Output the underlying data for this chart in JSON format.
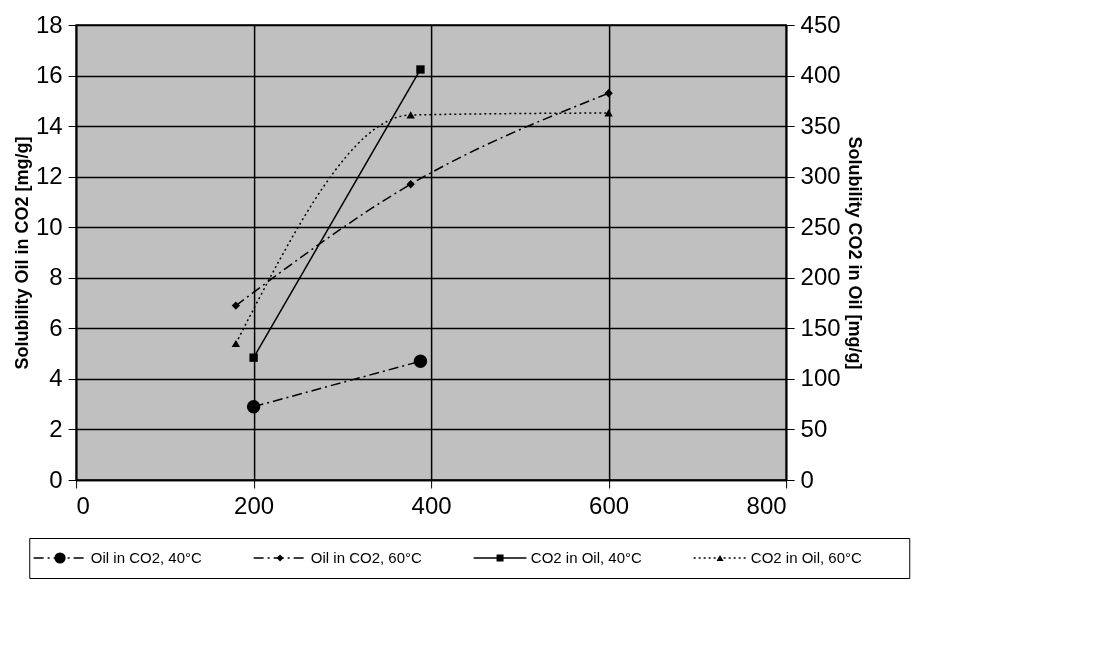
{
  "chart_data": {
    "type": "line",
    "ylabel": "Solubility Oil in CO2 [mg/g]",
    "y2label": "Solubility CO2 in Oil [mg/g]",
    "xlim": [
      0,
      800
    ],
    "xticks": [
      0,
      200,
      400,
      600,
      800
    ],
    "ylim": [
      0,
      18
    ],
    "yticks": [
      0,
      2,
      4,
      6,
      8,
      10,
      12,
      14,
      16,
      18
    ],
    "y2lim": [
      0,
      450
    ],
    "y2ticks": [
      0,
      50,
      100,
      150,
      200,
      250,
      300,
      350,
      400,
      450
    ],
    "grid": true,
    "legend": "bottom",
    "series": [
      {
        "name": "Oil in CO2, 40°C",
        "color": "#000000",
        "marker": "circle",
        "line_style": "dashed",
        "x": [
          200,
          388
        ],
        "values": [
          2.9,
          4.7
        ]
      },
      {
        "name": "Oil in CO2, 60°C",
        "color": "#000000",
        "marker": "diamond",
        "line_style": "dashed",
        "x": [
          180,
          377,
          600
        ],
        "values": [
          6.9,
          11.7,
          15.3
        ]
      },
      {
        "name": "CO2 in Oil, 40°C",
        "color": "#000000",
        "marker": "square",
        "line_style": "solid",
        "axis": "y2",
        "x": [
          200,
          388
        ],
        "values": [
          121,
          406
        ]
      },
      {
        "name": "CO2 in Oil, 60°C",
        "color": "#000000",
        "marker": "triangle",
        "line_style": "dotted",
        "axis": "y2",
        "x": [
          180,
          377,
          600
        ],
        "values": [
          135,
          361,
          363
        ]
      }
    ]
  }
}
